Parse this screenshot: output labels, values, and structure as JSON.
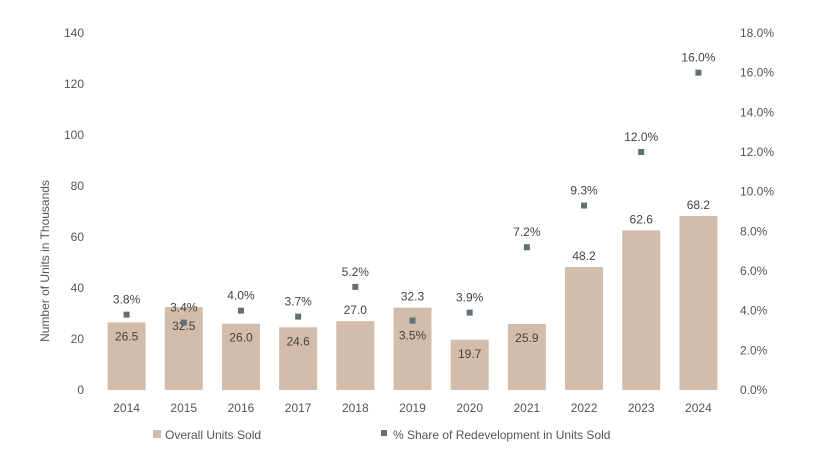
{
  "chart_data": {
    "type": "bar",
    "categories": [
      "2014",
      "2015",
      "2016",
      "2017",
      "2018",
      "2019",
      "2020",
      "2021",
      "2022",
      "2023",
      "2024"
    ],
    "series": [
      {
        "name": "Overall Units Sold",
        "type": "bar",
        "axis": "left",
        "values": [
          26.5,
          32.5,
          26.0,
          24.6,
          27.0,
          32.3,
          19.7,
          25.9,
          48.2,
          62.6,
          68.2
        ],
        "labels": [
          "26.5",
          "32.5",
          "26.0",
          "24.6",
          "27.0",
          "32.3",
          "19.7",
          "25.9",
          "48.2",
          "62.6",
          "68.2"
        ]
      },
      {
        "name": "% Share of Redevelopment in Units Sold",
        "type": "scatter",
        "axis": "right",
        "values": [
          3.8,
          3.4,
          4.0,
          3.7,
          5.2,
          3.5,
          3.9,
          7.2,
          9.3,
          12.0,
          16.0
        ],
        "labels": [
          "3.8%",
          "3.4%",
          "4.0%",
          "3.7%",
          "5.2%",
          "3.5%",
          "3.9%",
          "7.2%",
          "9.3%",
          "12.0%",
          "16.0%"
        ]
      }
    ],
    "ylabel": "Number of Units in Thousands",
    "ylim": [
      0,
      140
    ],
    "y_ticks": [
      "0",
      "20",
      "40",
      "60",
      "80",
      "100",
      "120",
      "140"
    ],
    "y2lim": [
      0,
      18
    ],
    "y2_ticks": [
      "0.0%",
      "2.0%",
      "4.0%",
      "6.0%",
      "8.0%",
      "10.0%",
      "12.0%",
      "14.0%",
      "16.0%",
      "18.0%"
    ],
    "grid": false,
    "legend_position": "bottom",
    "colors": {
      "bar": "#d3bca9",
      "marker": "#5f7078",
      "text": "#444444"
    }
  }
}
